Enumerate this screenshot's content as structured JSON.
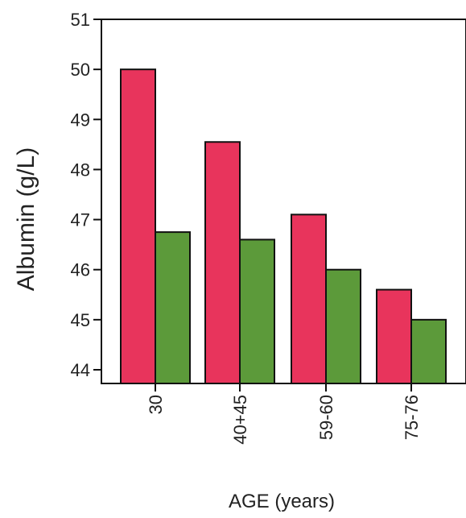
{
  "chart_data": {
    "type": "bar",
    "title": "",
    "xlabel": "AGE (years)",
    "ylabel": "Albumin (g/L)",
    "categories": [
      "30",
      "40+45",
      "59-60",
      "75-76"
    ],
    "series": [
      {
        "values": [
          50.0,
          48.55,
          47.1,
          45.6
        ],
        "color": "#e8345c"
      },
      {
        "values": [
          46.75,
          46.6,
          46.0,
          45.0
        ],
        "color": "#5c9a3a"
      }
    ],
    "ylim": [
      44,
      51
    ],
    "yticks": [
      44,
      45,
      46,
      47,
      48,
      49,
      50,
      51
    ],
    "grid": false,
    "legend": "none"
  }
}
